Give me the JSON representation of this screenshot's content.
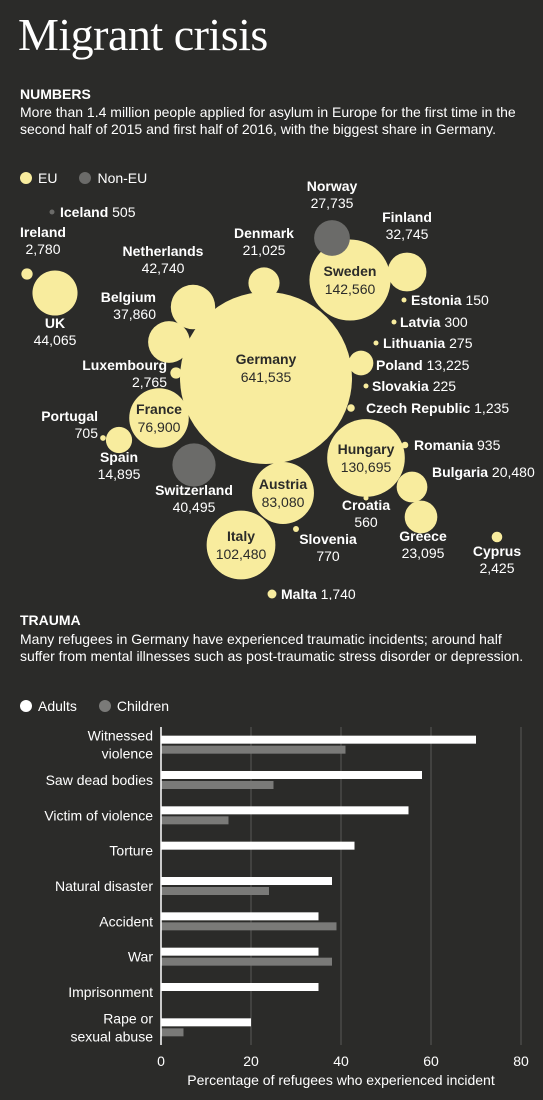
{
  "title": "Migrant crisis",
  "numbers": {
    "heading": "NUMBERS",
    "intro": "More than 1.4 million people applied for asylum in Europe for the first time in the second half of 2015 and first half of 2016, with the biggest share in Germany.",
    "legend": {
      "eu": "EU",
      "non_eu": "Non-EU"
    }
  },
  "trauma": {
    "heading": "TRAUMA",
    "intro": "Many refugees in Germany have experienced traumatic incidents; around half suffer from mental illnesses such as post-traumatic stress disorder or depression.",
    "legend": {
      "adults": "Adults",
      "children": "Children"
    }
  },
  "colors": {
    "eu": "#f8ec9e",
    "non_eu": "#6b6b69",
    "adults": "#ffffff",
    "children": "#7a7a78",
    "background": "#2b2b29",
    "grid": "#5a5a58"
  },
  "chart_data": [
    {
      "type": "bubble",
      "title": "NUMBERS",
      "unit": "first-time asylum applicants",
      "points": [
        {
          "country": "Germany",
          "value": 641535,
          "group": "EU"
        },
        {
          "country": "Sweden",
          "value": 142560,
          "group": "EU"
        },
        {
          "country": "Hungary",
          "value": 130695,
          "group": "EU"
        },
        {
          "country": "Italy",
          "value": 102480,
          "group": "EU"
        },
        {
          "country": "Austria",
          "value": 83080,
          "group": "EU"
        },
        {
          "country": "France",
          "value": 76900,
          "group": "EU"
        },
        {
          "country": "UK",
          "value": 44065,
          "group": "EU"
        },
        {
          "country": "Netherlands",
          "value": 42740,
          "group": "EU"
        },
        {
          "country": "Switzerland",
          "value": 40495,
          "group": "Non-EU"
        },
        {
          "country": "Belgium",
          "value": 37860,
          "group": "EU"
        },
        {
          "country": "Finland",
          "value": 32745,
          "group": "EU"
        },
        {
          "country": "Norway",
          "value": 27735,
          "group": "Non-EU"
        },
        {
          "country": "Greece",
          "value": 23095,
          "group": "EU"
        },
        {
          "country": "Denmark",
          "value": 21025,
          "group": "EU"
        },
        {
          "country": "Bulgaria",
          "value": 20480,
          "group": "EU"
        },
        {
          "country": "Spain",
          "value": 14895,
          "group": "EU"
        },
        {
          "country": "Poland",
          "value": 13225,
          "group": "EU"
        },
        {
          "country": "Ireland",
          "value": 2780,
          "group": "EU"
        },
        {
          "country": "Luxembourg",
          "value": 2765,
          "group": "EU"
        },
        {
          "country": "Cyprus",
          "value": 2425,
          "group": "EU"
        },
        {
          "country": "Malta",
          "value": 1740,
          "group": "EU"
        },
        {
          "country": "Czech Republic",
          "value": 1235,
          "group": "EU"
        },
        {
          "country": "Romania",
          "value": 935,
          "group": "EU"
        },
        {
          "country": "Slovenia",
          "value": 770,
          "group": "EU"
        },
        {
          "country": "Portugal",
          "value": 705,
          "group": "EU"
        },
        {
          "country": "Croatia",
          "value": 560,
          "group": "EU"
        },
        {
          "country": "Iceland",
          "value": 505,
          "group": "Non-EU"
        },
        {
          "country": "Latvia",
          "value": 300,
          "group": "EU"
        },
        {
          "country": "Lithuania",
          "value": 275,
          "group": "EU"
        },
        {
          "country": "Slovakia",
          "value": 225,
          "group": "EU"
        },
        {
          "country": "Estonia",
          "value": 150,
          "group": "EU"
        }
      ]
    },
    {
      "type": "bar",
      "orientation": "horizontal",
      "title": "TRAUMA",
      "categories": [
        "Witnessed violence",
        "Saw dead bodies",
        "Victim of violence",
        "Torture",
        "Natural disaster",
        "Accident",
        "War",
        "Imprisonment",
        "Rape or sexual abuse"
      ],
      "series": [
        {
          "name": "Adults",
          "values": [
            70,
            58,
            55,
            43,
            38,
            35,
            35,
            35,
            20
          ]
        },
        {
          "name": "Children",
          "values": [
            41,
            25,
            15,
            null,
            24,
            39,
            38,
            null,
            5
          ]
        }
      ],
      "xlabel": "Percentage of refugees who experienced incident",
      "ylabel": "",
      "xlim": [
        0,
        80
      ],
      "xticks": [
        0,
        20,
        40,
        60,
        80
      ],
      "grid": true,
      "legend": "top-left"
    }
  ]
}
